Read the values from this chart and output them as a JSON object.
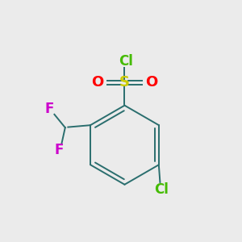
{
  "background_color": "#ebebeb",
  "fig_size": [
    3.0,
    3.0
  ],
  "dpi": 100,
  "atom_colors": {
    "Cl": "#44bb00",
    "S": "#cccc00",
    "O": "#ff0000",
    "F": "#cc00cc",
    "C": "#2a6e6e",
    "bond": "#2a6e6e"
  },
  "bond_width": 1.4,
  "font_size_atoms": 12
}
